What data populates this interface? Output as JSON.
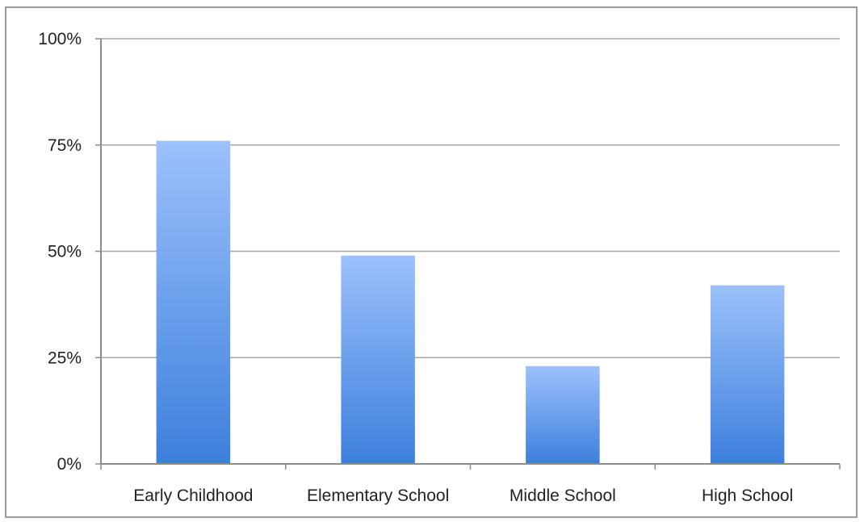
{
  "chart_data": {
    "type": "bar",
    "categories": [
      "Early Childhood",
      "Elementary School",
      "Middle School",
      "High School"
    ],
    "values": [
      76,
      49,
      23,
      42
    ],
    "ylim": [
      0,
      100
    ],
    "yticks": [
      0,
      25,
      50,
      75,
      100
    ],
    "ytick_labels": [
      "0%",
      "25%",
      "50%",
      "75%",
      "100%"
    ],
    "grid": true,
    "legend": "none",
    "colors": {
      "bar_top": "#9cc1fb",
      "bar_bottom": "#3d7fdc",
      "grid": "#a6a6a6",
      "axis": "#8c8c8c",
      "frame": "#9a9a9a"
    }
  }
}
